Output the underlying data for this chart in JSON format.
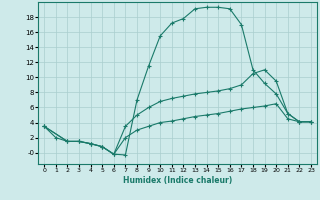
{
  "xlabel": "Humidex (Indice chaleur)",
  "bg_color": "#ceeaea",
  "grid_color": "#aacece",
  "line_color": "#1a7a6a",
  "xlim": [
    -0.5,
    23.5
  ],
  "ylim": [
    -1.5,
    20.0
  ],
  "xticks": [
    0,
    1,
    2,
    3,
    4,
    5,
    6,
    7,
    8,
    9,
    10,
    11,
    12,
    13,
    14,
    15,
    16,
    17,
    18,
    19,
    20,
    21,
    22,
    23
  ],
  "yticks": [
    0,
    2,
    4,
    6,
    8,
    10,
    12,
    14,
    16,
    18
  ],
  "ytick_labels": [
    "-0",
    "2",
    "4",
    "6",
    "8",
    "10",
    "12",
    "14",
    "16",
    "18"
  ],
  "line1_x": [
    0,
    1,
    2,
    3,
    4,
    5,
    6,
    7,
    8,
    9,
    10,
    11,
    12,
    13,
    14,
    15,
    16,
    17,
    18,
    19,
    20,
    21,
    22,
    23
  ],
  "line1_y": [
    3.5,
    2.0,
    1.5,
    1.5,
    1.2,
    0.8,
    -0.2,
    -0.3,
    7.0,
    11.5,
    15.5,
    17.2,
    17.8,
    19.1,
    19.3,
    19.3,
    19.1,
    17.0,
    11.0,
    9.2,
    7.8,
    5.2,
    4.1,
    4.1
  ],
  "line2_x": [
    0,
    2,
    3,
    4,
    5,
    6,
    7,
    8,
    9,
    10,
    11,
    12,
    13,
    14,
    15,
    16,
    17,
    18,
    19,
    20,
    21,
    22,
    23
  ],
  "line2_y": [
    3.5,
    1.5,
    1.5,
    1.2,
    0.8,
    -0.2,
    3.5,
    5.0,
    6.0,
    6.8,
    7.2,
    7.5,
    7.8,
    8.0,
    8.2,
    8.5,
    9.0,
    10.5,
    11.0,
    9.5,
    5.2,
    4.1,
    4.1
  ],
  "line3_x": [
    0,
    2,
    3,
    4,
    5,
    6,
    7,
    8,
    9,
    10,
    11,
    12,
    13,
    14,
    15,
    16,
    17,
    18,
    19,
    20,
    21,
    22,
    23
  ],
  "line3_y": [
    3.5,
    1.5,
    1.5,
    1.2,
    0.8,
    -0.2,
    2.0,
    3.0,
    3.5,
    4.0,
    4.2,
    4.5,
    4.8,
    5.0,
    5.2,
    5.5,
    5.8,
    6.0,
    6.2,
    6.5,
    4.5,
    4.1,
    4.1
  ]
}
